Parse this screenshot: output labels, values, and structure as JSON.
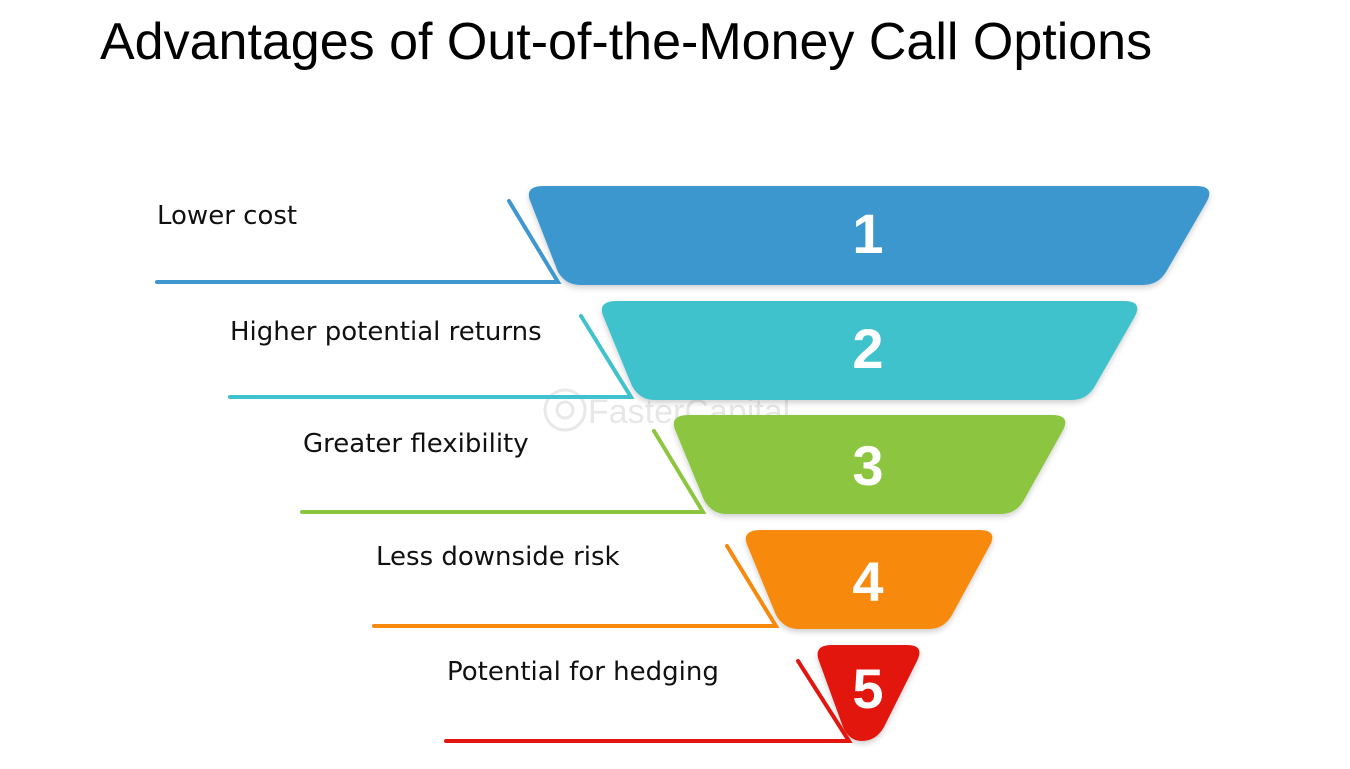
{
  "title": "Advantages of Out-of-the-Money Call Options",
  "watermark": "FasterCapital",
  "levels": [
    {
      "number": "1",
      "label": "Lower cost",
      "color": "#3e97cf"
    },
    {
      "number": "2",
      "label": "Higher potential returns",
      "color": "#3fc2cd"
    },
    {
      "number": "3",
      "label": "Greater flexibility",
      "color": "#8cc63f"
    },
    {
      "number": "4",
      "label": "Less downside risk",
      "color": "#f7890f"
    },
    {
      "number": "5",
      "label": "Potential for hedging",
      "color": "#e3150f"
    }
  ]
}
